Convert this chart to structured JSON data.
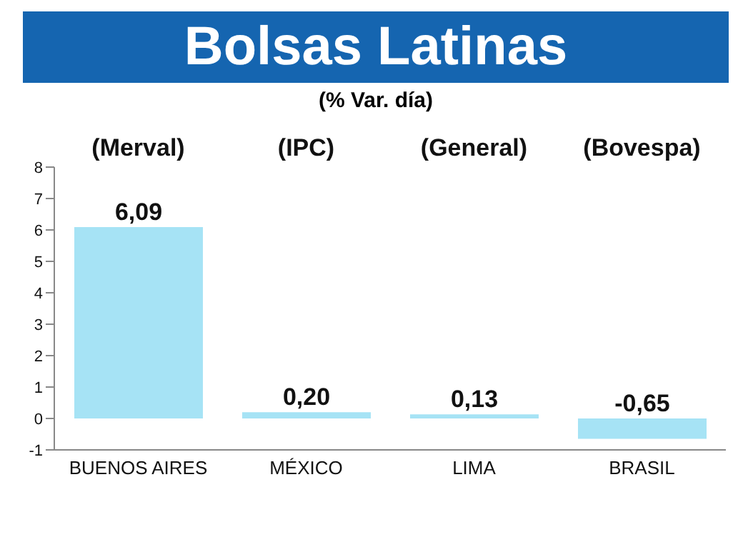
{
  "chart_data": {
    "type": "bar",
    "title": "Bolsas Latinas",
    "subtitle": "(% Var. día)",
    "categories": [
      "BUENOS AIRES",
      "MÉXICO",
      "LIMA",
      "BRASIL"
    ],
    "values": [
      6.09,
      0.2,
      0.13,
      -0.65
    ],
    "value_labels": [
      "6,09",
      "0,20",
      "0,13",
      "-0,65"
    ],
    "color": "#a6e3f5",
    "ylim": [
      -1,
      8
    ],
    "yticks": [
      -1,
      0,
      1,
      2,
      3,
      4,
      5,
      6,
      7,
      8
    ],
    "grid": false,
    "annotations": [
      "(Merval)",
      "(IPC)",
      "(General)",
      "(Bovespa)"
    ]
  }
}
